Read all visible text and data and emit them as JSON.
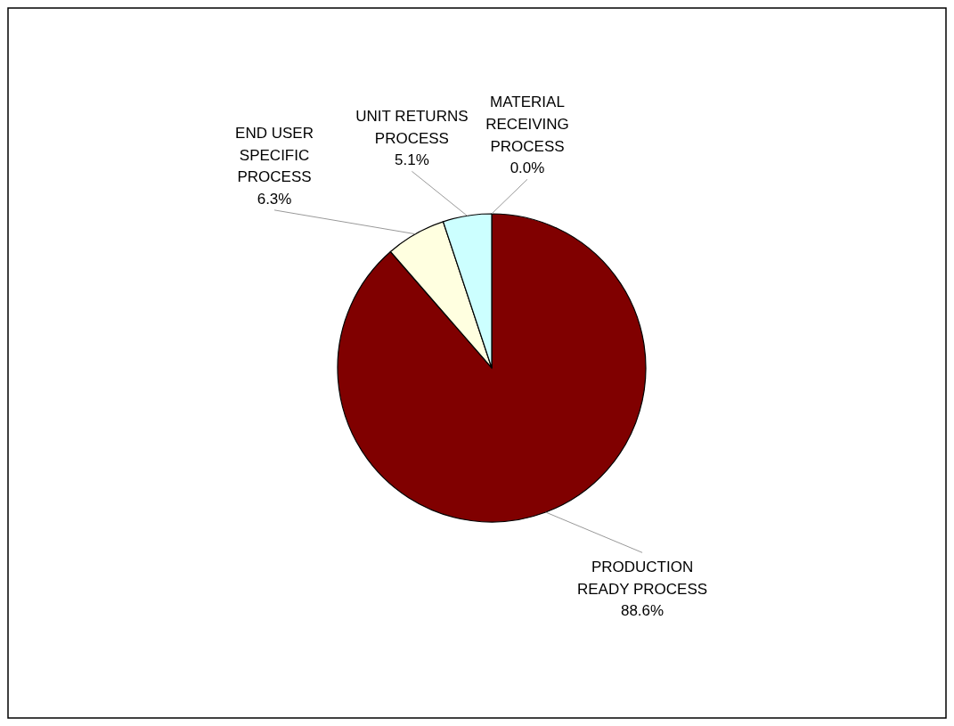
{
  "chart_data": {
    "type": "pie",
    "categories": [
      "MATERIAL RECEIVING PROCESS",
      "PRODUCTION READY PROCESS",
      "END USER SPECIFIC PROCESS",
      "UNIT RETURNS PROCESS"
    ],
    "values": [
      0.0,
      88.6,
      6.3,
      5.1
    ],
    "colors": [
      "#9999ff",
      "#800000",
      "#ffffe0",
      "#ccffff"
    ],
    "value_labels": [
      "0.0%",
      "88.6%",
      "6.3%",
      "5.1%"
    ]
  }
}
